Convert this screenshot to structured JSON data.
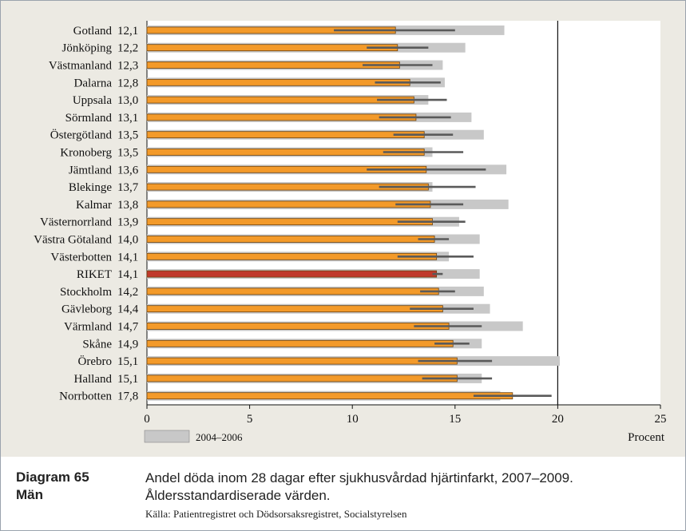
{
  "caption": {
    "number": "Diagram 65",
    "group": "Män",
    "title": "Andel döda inom 28 dagar efter sjukhusvårdad hjärtinfarkt, 2007–2009. Åldersstandardiserade värden.",
    "source": "Källa: Patientregistret och Dödsorsaksregistret, Socialstyrelsen"
  },
  "colors": {
    "current": "#f39a2a",
    "riket": "#c0392b",
    "previous": "#c8c8c8",
    "error": "#5a5a5a",
    "chart_bg": "#eceae3"
  },
  "chart_data": {
    "type": "bar",
    "orientation": "horizontal",
    "title": "",
    "xlabel": "Procent",
    "ylabel": "",
    "xlim": [
      0,
      25
    ],
    "xticks": [
      0,
      5,
      10,
      15,
      20,
      25
    ],
    "legend": {
      "placement": "bottom-left",
      "entries": [
        "2004–2006"
      ]
    },
    "categories": [
      "Gotland",
      "Jönköping",
      "Västmanland",
      "Dalarna",
      "Uppsala",
      "Sörmland",
      "Östergötland",
      "Kronoberg",
      "Jämtland",
      "Blekinge",
      "Kalmar",
      "Västernorrland",
      "Västra Götaland",
      "Västerbotten",
      "RIKET",
      "Stockholm",
      "Gävleborg",
      "Värmland",
      "Skåne",
      "Örebro",
      "Halland",
      "Norrbotten"
    ],
    "value_labels": [
      "12,1",
      "12,2",
      "12,3",
      "12,8",
      "13,0",
      "13,1",
      "13,5",
      "13,5",
      "13,6",
      "13,7",
      "13,8",
      "13,9",
      "14,0",
      "14,1",
      "14,1",
      "14,2",
      "14,4",
      "14,7",
      "14,9",
      "15,1",
      "15,1",
      "17,8"
    ],
    "highlight": "RIKET",
    "series": [
      {
        "name": "",
        "values": [
          12.1,
          12.2,
          12.3,
          12.8,
          13.0,
          13.1,
          13.5,
          13.5,
          13.6,
          13.7,
          13.8,
          13.9,
          14.0,
          14.1,
          14.1,
          14.2,
          14.4,
          14.7,
          14.9,
          15.1,
          15.1,
          17.8
        ]
      },
      {
        "name": "2004–2006",
        "values": [
          17.4,
          15.5,
          14.4,
          14.5,
          13.7,
          15.8,
          16.4,
          13.9,
          17.5,
          13.9,
          17.6,
          15.2,
          16.2,
          14.7,
          16.2,
          16.4,
          16.7,
          18.3,
          16.3,
          20.1,
          16.3,
          17.2
        ]
      }
    ],
    "error_low": [
      9.1,
      10.7,
      10.5,
      11.1,
      11.2,
      11.3,
      12.0,
      11.5,
      10.7,
      11.3,
      12.1,
      12.2,
      13.2,
      12.2,
      13.9,
      13.3,
      12.8,
      13.0,
      14.0,
      13.2,
      13.4,
      15.9
    ],
    "error_high": [
      15.0,
      13.7,
      13.9,
      14.3,
      14.6,
      14.8,
      14.9,
      15.4,
      16.5,
      16.0,
      15.4,
      15.5,
      14.7,
      15.9,
      14.4,
      15.0,
      15.9,
      16.3,
      15.7,
      16.8,
      16.8,
      19.7
    ]
  }
}
